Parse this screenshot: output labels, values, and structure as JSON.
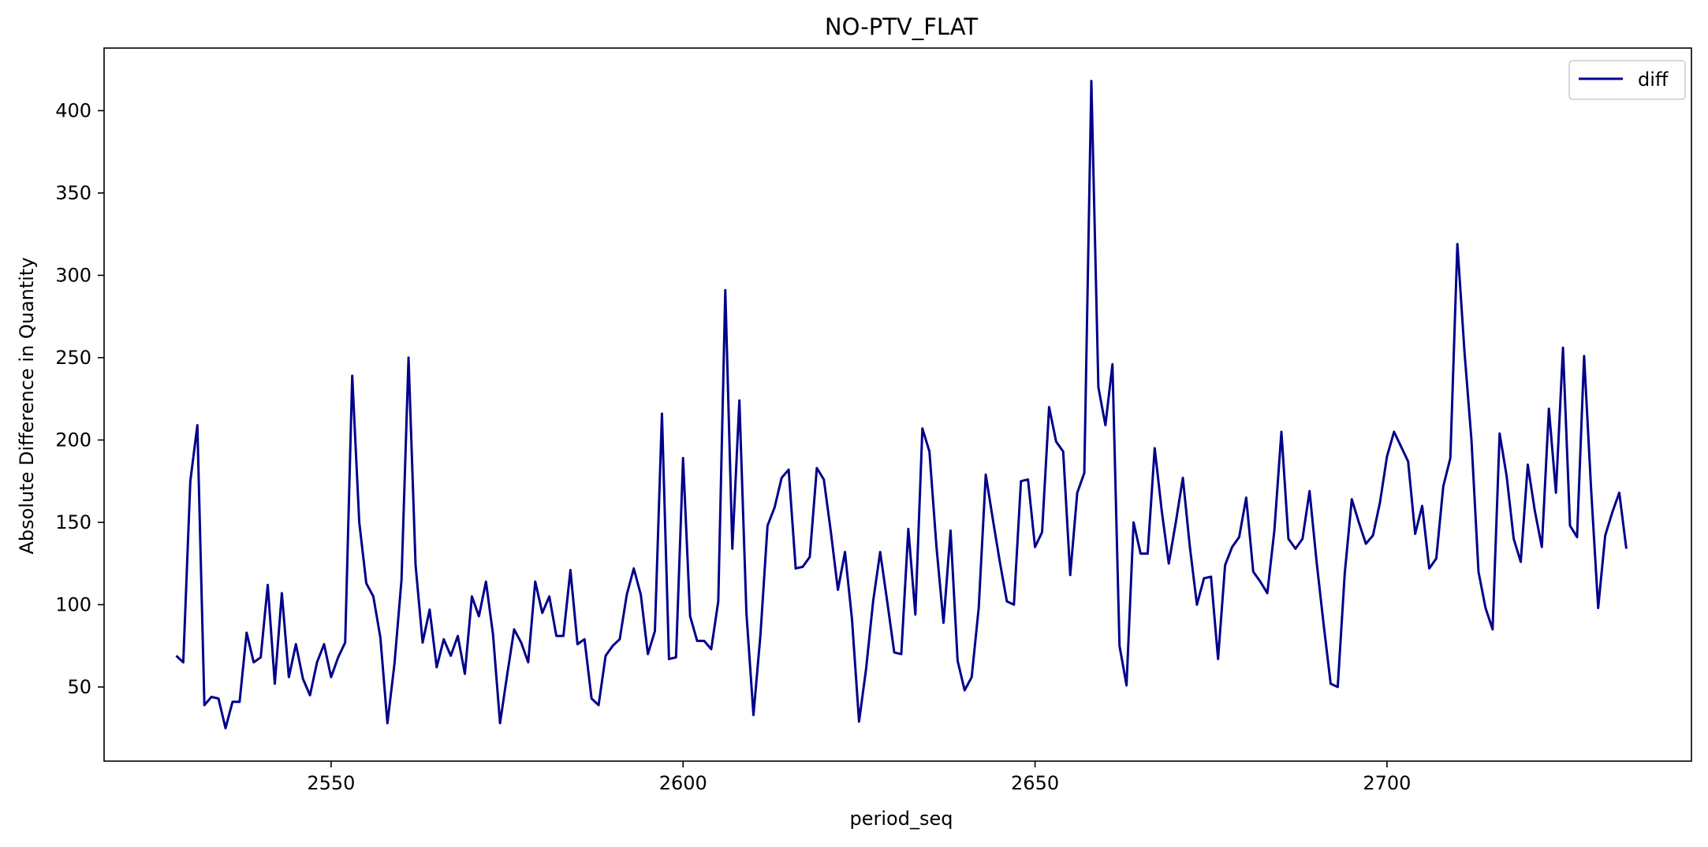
{
  "chart_data": {
    "type": "line",
    "title": "NO-PTV_FLAT",
    "xlabel": "period_seq",
    "ylabel": "Absolute Difference in Quantity",
    "xlim": [
      2517.75,
      2743.25
    ],
    "ylim": [
      5,
      438
    ],
    "xticks": [
      2550,
      2600,
      2650,
      2700
    ],
    "yticks": [
      50,
      100,
      150,
      200,
      250,
      300,
      350,
      400
    ],
    "grid": false,
    "legend_position": "upper right",
    "series": [
      {
        "name": "diff",
        "color": "#00008B",
        "x_start": 2528,
        "x_step": 1,
        "values": [
          69,
          65,
          175,
          209,
          39,
          44,
          43,
          25,
          41,
          41,
          83,
          65,
          68,
          112,
          52,
          107,
          56,
          76,
          55,
          45,
          65,
          76,
          56,
          68,
          77,
          239,
          150,
          113,
          105,
          80,
          28,
          64,
          115,
          250,
          124,
          77,
          97,
          62,
          79,
          69,
          81,
          58,
          105,
          93,
          114,
          82,
          28,
          57,
          85,
          77,
          65,
          114,
          95,
          105,
          81,
          81,
          121,
          76,
          79,
          43,
          39,
          69,
          75,
          79,
          106,
          122,
          106,
          70,
          84,
          216,
          67,
          68,
          189,
          93,
          78,
          78,
          73,
          102,
          291,
          134,
          224,
          95,
          33,
          82,
          148,
          159,
          177,
          182,
          122,
          123,
          129,
          183,
          176,
          144,
          109,
          132,
          91,
          29,
          61,
          102,
          132,
          102,
          71,
          70,
          146,
          94,
          207,
          193,
          135,
          89,
          145,
          66,
          48,
          56,
          98,
          179,
          152,
          126,
          102,
          100,
          175,
          176,
          135,
          144,
          220,
          199,
          193,
          118,
          168,
          180,
          418,
          232,
          209,
          246,
          75,
          51,
          150,
          131,
          131,
          195,
          157,
          125,
          150,
          177,
          135,
          100,
          116,
          117,
          67,
          124,
          135,
          141,
          165,
          120,
          114,
          107,
          145,
          205,
          140,
          134,
          140,
          169,
          126,
          88,
          52,
          50,
          119,
          164,
          150,
          137,
          142,
          162,
          190,
          205,
          196,
          187,
          143,
          160,
          122,
          128,
          172,
          189,
          319,
          254,
          200,
          120,
          98,
          85,
          204,
          178,
          140,
          126,
          185,
          157,
          135,
          219,
          168,
          256,
          148,
          141,
          251,
          170,
          98,
          142,
          156,
          168,
          134
        ]
      }
    ]
  }
}
